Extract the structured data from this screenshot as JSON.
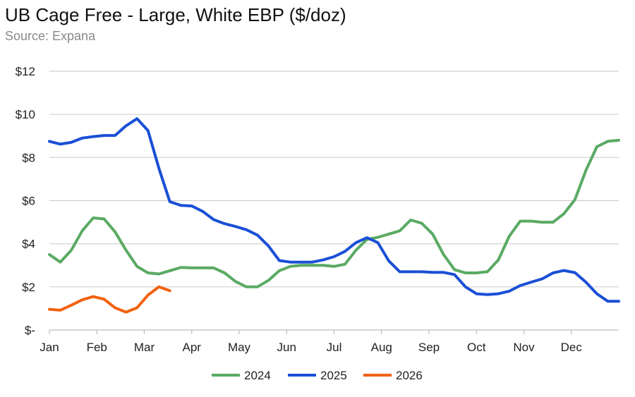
{
  "title": "UB Cage Free - Large, White EBP ($/doz)",
  "subtitle": "Source: Expana",
  "chart_data": {
    "type": "line",
    "title": "UB Cage Free - Large, White EBP ($/doz)",
    "subtitle": "Source: Expana",
    "xlabel": "",
    "ylabel": "",
    "x_ticks": [
      "Jan",
      "Feb",
      "Mar",
      "Apr",
      "May",
      "Jun",
      "Jul",
      "Aug",
      "Sep",
      "Oct",
      "Nov",
      "Dec"
    ],
    "x_unit": "week of year",
    "xlim": [
      1,
      53
    ],
    "ylim": [
      0,
      12
    ],
    "y_ticks": [
      0,
      2,
      4,
      6,
      8,
      10,
      12
    ],
    "y_tick_labels": [
      "$-",
      "$2",
      "$4",
      "$6",
      "$8",
      "$10",
      "$12"
    ],
    "grid": true,
    "legend_position": "bottom",
    "series": [
      {
        "name": "2024",
        "color": "#5aaa63",
        "x": [
          1,
          2,
          3,
          4,
          5,
          6,
          7,
          8,
          9,
          10,
          11,
          12,
          13,
          14,
          15,
          16,
          17,
          18,
          19,
          20,
          21,
          22,
          23,
          24,
          25,
          26,
          27,
          28,
          29,
          30,
          31,
          32,
          33,
          34,
          35,
          36,
          37,
          38,
          39,
          40,
          41,
          42,
          43,
          44,
          45,
          46,
          47,
          48,
          49,
          50,
          51,
          52,
          53
        ],
        "values": [
          3.5,
          3.15,
          3.7,
          4.6,
          5.2,
          5.15,
          4.55,
          3.7,
          2.95,
          2.65,
          2.6,
          2.75,
          2.9,
          2.88,
          2.88,
          2.88,
          2.65,
          2.25,
          2.0,
          2.0,
          2.3,
          2.75,
          2.95,
          3.0,
          3.0,
          3.0,
          2.95,
          3.05,
          3.7,
          4.2,
          4.3,
          4.45,
          4.6,
          5.1,
          4.95,
          4.45,
          3.5,
          2.8,
          2.65,
          2.65,
          2.7,
          3.25,
          4.35,
          5.05,
          5.05,
          5.0,
          5.0,
          5.4,
          6.05,
          7.4,
          8.5,
          8.75,
          8.8
        ]
      },
      {
        "name": "2025",
        "color": "#1a4fd6",
        "x": [
          1,
          2,
          3,
          4,
          5,
          6,
          7,
          8,
          9,
          10,
          11,
          12,
          13,
          14,
          15,
          16,
          17,
          18,
          19,
          20,
          21,
          22,
          23,
          24,
          25,
          26,
          27,
          28,
          29,
          30,
          31,
          32,
          33,
          34,
          35,
          36,
          37,
          38,
          39,
          40,
          41,
          42,
          43,
          44,
          45,
          46,
          47,
          48,
          49,
          50,
          51,
          52,
          53
        ],
        "values": [
          8.75,
          8.62,
          8.7,
          8.9,
          8.97,
          9.02,
          9.02,
          9.47,
          9.8,
          9.25,
          7.5,
          5.95,
          5.78,
          5.75,
          5.5,
          5.12,
          4.93,
          4.8,
          4.65,
          4.4,
          3.9,
          3.22,
          3.15,
          3.15,
          3.15,
          3.25,
          3.4,
          3.65,
          4.05,
          4.28,
          4.05,
          3.2,
          2.7,
          2.7,
          2.7,
          2.67,
          2.67,
          2.57,
          2.0,
          1.68,
          1.64,
          1.68,
          1.8,
          2.06,
          2.22,
          2.37,
          2.65,
          2.76,
          2.66,
          2.22,
          1.68,
          1.33,
          1.33
        ]
      },
      {
        "name": "2026",
        "color": "#f0620f",
        "x": [
          1,
          2,
          3,
          4,
          5,
          6,
          7,
          8,
          9,
          10,
          11,
          12
        ],
        "values": [
          0.96,
          0.92,
          1.15,
          1.4,
          1.55,
          1.43,
          1.03,
          0.83,
          1.03,
          1.62,
          2.0,
          1.82
        ]
      }
    ]
  }
}
